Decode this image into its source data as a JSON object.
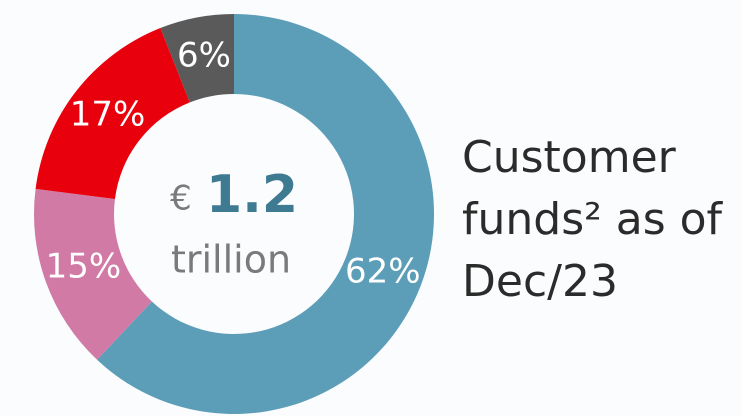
{
  "chart_data": {
    "type": "pie",
    "values": [
      62,
      15,
      17,
      6
    ],
    "value_labels": [
      "62%",
      "15%",
      "17%",
      "6%"
    ],
    "colors": [
      "#5c9eb8",
      "#d07aa5",
      "#e8000c",
      "#5a5a5a"
    ],
    "center_text": {
      "currency": "€",
      "amount": "1.2",
      "unit": "trillion"
    },
    "side_label": [
      "Customer",
      "funds² as of",
      "Dec/23"
    ]
  }
}
